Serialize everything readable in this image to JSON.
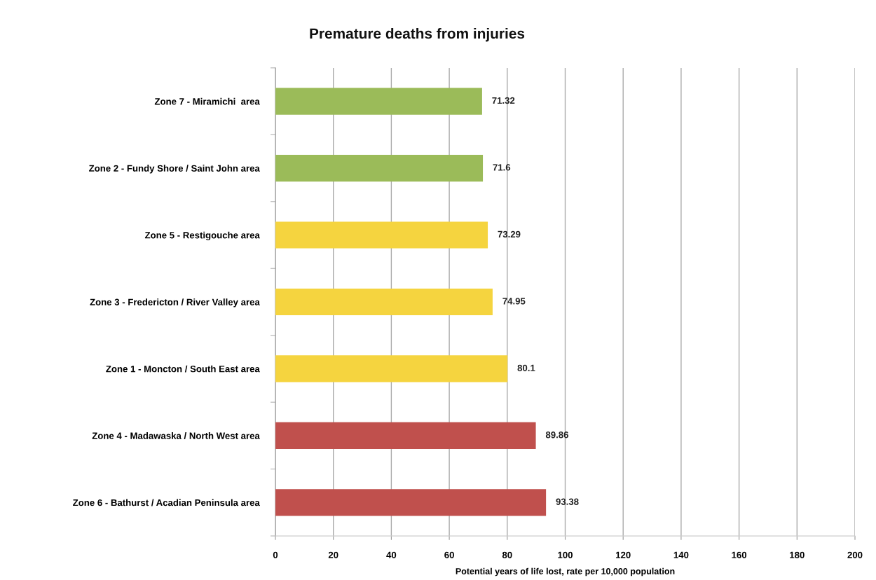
{
  "chart_data": {
    "type": "bar",
    "orientation": "horizontal",
    "title": "Premature deaths from injuries",
    "xlabel": "Potential years of life lost, rate per 10,000 population",
    "categories": [
      "Zone 7 - Miramichi  area",
      "Zone 2 - Fundy Shore / Saint John area",
      "Zone 5 - Restigouche area",
      "Zone 3 - Fredericton / River Valley area",
      "Zone 1 - Moncton / South East area",
      "Zone 4 - Madawaska / North West area",
      "Zone 6 - Bathurst / Acadian Peninsula area"
    ],
    "values": [
      71.32,
      71.6,
      73.29,
      74.95,
      80.1,
      89.86,
      93.38
    ],
    "colors": [
      "#9bbb59",
      "#9bbb59",
      "#f5d43f",
      "#f5d43f",
      "#f5d43f",
      "#c0504d",
      "#c0504d"
    ],
    "xlim": [
      0,
      200
    ],
    "xticks": [
      0,
      20,
      40,
      60,
      80,
      100,
      120,
      140,
      160,
      180,
      200
    ],
    "grid": "x",
    "data_labels": true,
    "legend": false
  }
}
